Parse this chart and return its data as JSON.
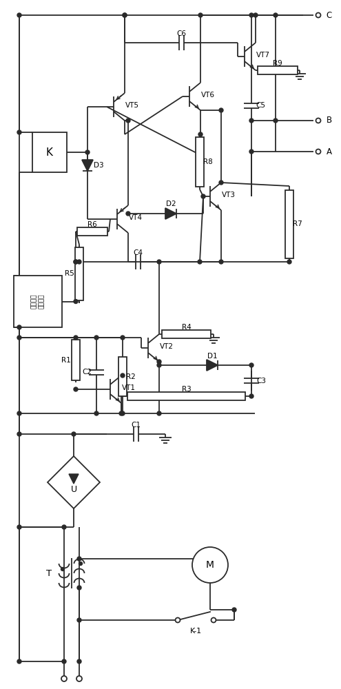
{
  "fig_w": 4.95,
  "fig_h": 10.0,
  "dpi": 100,
  "lc": "#2a2a2a",
  "lw": 1.3,
  "labels": {
    "K": "K",
    "prot1": "电流缓冲",
    "prot2": "保护电路",
    "T": "T",
    "U": "U",
    "M": "M",
    "K1": "K-1",
    "VT5": "VT5",
    "VT6": "VT6",
    "VT7": "VT7",
    "VT3": "VT3",
    "VT4": "VT4",
    "VT1": "VT1",
    "VT2": "VT2",
    "D3": "D3",
    "D2": "D2",
    "D1": "D1",
    "C6": "C6",
    "C5": "C5",
    "C4": "C4",
    "C3": "C3",
    "C2": "C2",
    "C1": "C1",
    "R9": "R9",
    "R8": "R8",
    "R7": "R7",
    "R6": "R6",
    "R5": "R5",
    "R4": "R4",
    "R3": "R3",
    "R2": "R2",
    "R1": "R1",
    "A": "A",
    "B": "B",
    "C": "C"
  }
}
